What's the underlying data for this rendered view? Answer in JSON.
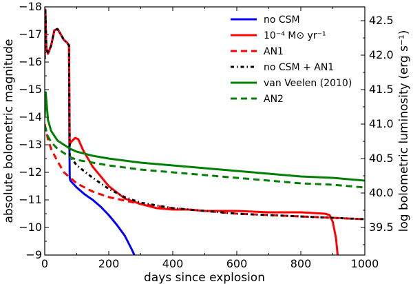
{
  "chart_data": {
    "type": "line",
    "xlabel": "days since explosion",
    "ylabel": "absolute bolometric magnitude",
    "ylabel_right": "log bolometric luminosity (erg s⁻¹)",
    "xlim": [
      0,
      1000
    ],
    "ylim": [
      -9,
      -18
    ],
    "ylim_right": [
      39.1,
      42.7
    ],
    "x_ticks": [
      0,
      200,
      400,
      600,
      800,
      1000
    ],
    "x_tick_labels": [
      "0",
      "200",
      "400",
      "600",
      "800",
      "1000"
    ],
    "y_ticks": [
      -18,
      -17,
      -16,
      -15,
      -14,
      -13,
      -12,
      -11,
      -10,
      -9
    ],
    "y_tick_labels": [
      "−18",
      "−17",
      "−16",
      "−15",
      "−14",
      "−13",
      "−12",
      "−11",
      "−10",
      "−9"
    ],
    "y_right_ticks": [
      39.5,
      40.0,
      40.5,
      41.0,
      41.5,
      42.0,
      42.5
    ],
    "y_right_tick_labels": [
      "39.5",
      "40.0",
      "40.5",
      "41.0",
      "41.5",
      "42.0",
      "42.5"
    ],
    "legend_position": "top-right",
    "series": [
      {
        "name": "no CSM",
        "color": "#0000ff",
        "style": "solid",
        "points": [
          [
            0,
            -16.1
          ],
          [
            2,
            -17.9
          ],
          [
            5,
            -16.5
          ],
          [
            10,
            -16.3
          ],
          [
            20,
            -16.6
          ],
          [
            30,
            -17.15
          ],
          [
            40,
            -17.2
          ],
          [
            50,
            -17.0
          ],
          [
            60,
            -16.8
          ],
          [
            70,
            -16.7
          ],
          [
            76,
            -16.6
          ],
          [
            77,
            -13.2
          ],
          [
            78,
            -11.8
          ],
          [
            80,
            -11.7
          ],
          [
            100,
            -11.45
          ],
          [
            125,
            -11.2
          ],
          [
            150,
            -11.0
          ],
          [
            175,
            -10.75
          ],
          [
            200,
            -10.45
          ],
          [
            225,
            -10.1
          ],
          [
            250,
            -9.7
          ],
          [
            272,
            -9.2
          ],
          [
            280,
            -9.0
          ]
        ]
      },
      {
        "name": "10⁻⁴ M⊙ yr⁻¹",
        "color": "#ff0000",
        "style": "solid",
        "points": [
          [
            0,
            -16.1
          ],
          [
            2,
            -17.9
          ],
          [
            5,
            -16.5
          ],
          [
            10,
            -16.3
          ],
          [
            20,
            -16.6
          ],
          [
            30,
            -17.15
          ],
          [
            40,
            -17.2
          ],
          [
            50,
            -17.0
          ],
          [
            60,
            -16.8
          ],
          [
            70,
            -16.7
          ],
          [
            76,
            -16.6
          ],
          [
            78,
            -13.0
          ],
          [
            82,
            -13.1
          ],
          [
            95,
            -13.25
          ],
          [
            105,
            -13.2
          ],
          [
            120,
            -12.8
          ],
          [
            150,
            -12.2
          ],
          [
            200,
            -11.5
          ],
          [
            250,
            -11.05
          ],
          [
            300,
            -10.85
          ],
          [
            350,
            -10.7
          ],
          [
            400,
            -10.65
          ],
          [
            450,
            -10.65
          ],
          [
            500,
            -10.6
          ],
          [
            600,
            -10.6
          ],
          [
            700,
            -10.55
          ],
          [
            800,
            -10.55
          ],
          [
            875,
            -10.5
          ],
          [
            890,
            -10.45
          ],
          [
            900,
            -10.2
          ],
          [
            910,
            -9.6
          ],
          [
            915,
            -9.0
          ]
        ]
      },
      {
        "name": "AN1",
        "color": "#ff0000",
        "style": "dashed",
        "points": [
          [
            0,
            -13.75
          ],
          [
            10,
            -13.2
          ],
          [
            20,
            -12.85
          ],
          [
            40,
            -12.4
          ],
          [
            60,
            -12.0
          ],
          [
            80,
            -11.8
          ],
          [
            100,
            -11.6
          ],
          [
            150,
            -11.3
          ],
          [
            200,
            -11.1
          ],
          [
            300,
            -10.85
          ],
          [
            400,
            -10.7
          ],
          [
            500,
            -10.6
          ],
          [
            600,
            -10.5
          ],
          [
            700,
            -10.45
          ],
          [
            800,
            -10.4
          ],
          [
            900,
            -10.35
          ],
          [
            1000,
            -10.3
          ]
        ]
      },
      {
        "name": "no CSM + AN1",
        "color": "#000000",
        "style": "dashdot",
        "points": [
          [
            0,
            -16.1
          ],
          [
            2,
            -17.9
          ],
          [
            5,
            -16.5
          ],
          [
            10,
            -16.3
          ],
          [
            20,
            -16.6
          ],
          [
            30,
            -17.15
          ],
          [
            40,
            -17.2
          ],
          [
            50,
            -17.0
          ],
          [
            60,
            -16.8
          ],
          [
            70,
            -16.7
          ],
          [
            76,
            -16.6
          ],
          [
            78,
            -12.6
          ],
          [
            100,
            -12.25
          ],
          [
            150,
            -11.8
          ],
          [
            200,
            -11.4
          ],
          [
            250,
            -11.1
          ],
          [
            300,
            -10.9
          ],
          [
            400,
            -10.7
          ],
          [
            500,
            -10.6
          ],
          [
            600,
            -10.5
          ],
          [
            700,
            -10.45
          ],
          [
            800,
            -10.4
          ],
          [
            900,
            -10.35
          ],
          [
            1000,
            -10.3
          ]
        ]
      },
      {
        "name": "van Veelen (2010)",
        "color": "#008000",
        "style": "solid",
        "points": [
          [
            0,
            -14.0
          ],
          [
            3,
            -14.9
          ],
          [
            10,
            -13.9
          ],
          [
            20,
            -13.5
          ],
          [
            40,
            -13.15
          ],
          [
            60,
            -13.0
          ],
          [
            80,
            -12.85
          ],
          [
            100,
            -12.75
          ],
          [
            150,
            -12.6
          ],
          [
            200,
            -12.5
          ],
          [
            300,
            -12.35
          ],
          [
            400,
            -12.25
          ],
          [
            500,
            -12.15
          ],
          [
            600,
            -12.05
          ],
          [
            700,
            -11.95
          ],
          [
            800,
            -11.85
          ],
          [
            900,
            -11.8
          ],
          [
            1000,
            -11.7
          ]
        ]
      },
      {
        "name": "AN2",
        "color": "#008000",
        "style": "dashed",
        "points": [
          [
            0,
            -13.7
          ],
          [
            10,
            -13.3
          ],
          [
            20,
            -13.1
          ],
          [
            40,
            -12.85
          ],
          [
            60,
            -12.7
          ],
          [
            80,
            -12.55
          ],
          [
            100,
            -12.45
          ],
          [
            150,
            -12.35
          ],
          [
            200,
            -12.25
          ],
          [
            300,
            -12.1
          ],
          [
            400,
            -12.0
          ],
          [
            500,
            -11.9
          ],
          [
            600,
            -11.8
          ],
          [
            700,
            -11.7
          ],
          [
            800,
            -11.6
          ],
          [
            900,
            -11.55
          ],
          [
            1000,
            -11.45
          ]
        ]
      }
    ]
  }
}
